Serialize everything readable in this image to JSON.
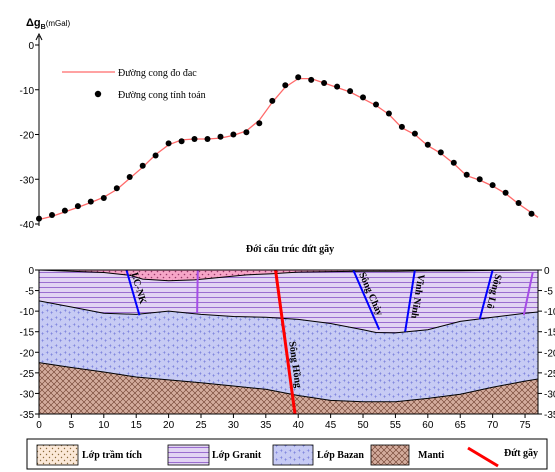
{
  "chart_data": [
    {
      "type": "line",
      "y_axis_label_symbol": "Δg",
      "y_axis_label_sub": "B",
      "y_axis_unit": "(mGal)",
      "ylim": [
        -40,
        0
      ],
      "yticks": [
        "0",
        "-10",
        "-20",
        "-30",
        "-40"
      ],
      "xlim": [
        0,
        77
      ],
      "legend": {
        "position": "top-left"
      },
      "series": [
        {
          "name": "Đường cong đo đac",
          "color": "#ff6a6a",
          "style": "line",
          "x": [
            0,
            2,
            4,
            6,
            8,
            10,
            12,
            14,
            16,
            18,
            20,
            22,
            24,
            26,
            28,
            30,
            32,
            34,
            36,
            38,
            40,
            42,
            44,
            46,
            48,
            50,
            52,
            54,
            56,
            58,
            60,
            62,
            64,
            66,
            68,
            70,
            72,
            74,
            76,
            77
          ],
          "y": [
            -39,
            -38.3,
            -37.3,
            -36.3,
            -35.2,
            -34,
            -32.3,
            -29.8,
            -27.3,
            -24.5,
            -22.3,
            -21.2,
            -21,
            -21,
            -20.8,
            -20.2,
            -19.2,
            -16.8,
            -12.8,
            -9.4,
            -7.5,
            -7.5,
            -8.5,
            -9.5,
            -10.5,
            -12,
            -13.5,
            -15.5,
            -18.5,
            -20,
            -22.5,
            -24.2,
            -26.5,
            -29.2,
            -30.2,
            -31.5,
            -33.2,
            -35.5,
            -37.5,
            -38.5
          ]
        },
        {
          "name": "Đường cong tính toán",
          "color": "#000000",
          "style": "points",
          "x": [
            0,
            2,
            4,
            6,
            8,
            10,
            12,
            14,
            16,
            18,
            20,
            22,
            24,
            26,
            28,
            30,
            32,
            34,
            36,
            38,
            40,
            42,
            44,
            46,
            48,
            50,
            52,
            54,
            56,
            58,
            60,
            62,
            64,
            66,
            68,
            70,
            72,
            74,
            76
          ],
          "y": [
            -38.8,
            -38,
            -37,
            -36,
            -35,
            -34.2,
            -32,
            -29.5,
            -27,
            -24.7,
            -22,
            -21.5,
            -21,
            -21,
            -20.5,
            -20,
            -19.5,
            -17.5,
            -12.5,
            -9,
            -7.2,
            -7.8,
            -8.5,
            -9.3,
            -10.3,
            -11.7,
            -13.3,
            -15.3,
            -18.3,
            -19.8,
            -22.3,
            -24,
            -26.3,
            -29,
            -30,
            -31.3,
            -33,
            -35.3,
            -37.7
          ]
        }
      ]
    },
    {
      "type": "area",
      "title": "Đới cấu trúc đứt gãy",
      "xlim": [
        0,
        77
      ],
      "ylim": [
        -35,
        0
      ],
      "xticks": [
        "0",
        "5",
        "10",
        "15",
        "20",
        "25",
        "30",
        "35",
        "40",
        "45",
        "50",
        "55",
        "60",
        "65",
        "70",
        "75"
      ],
      "yticks": [
        "0",
        "-5",
        "-10",
        "-15",
        "-20",
        "-25",
        "-30",
        "-35"
      ],
      "layers": [
        {
          "name": "Lớp trầm tích",
          "color": "#f6a5c7"
        },
        {
          "name": "Lớp Granit",
          "color": "#d7c2ef"
        },
        {
          "name": "Lớp Bazan",
          "color": "#c3c6f2"
        },
        {
          "name": "Manti",
          "color": "#c89c8c"
        }
      ],
      "boundaries": {
        "sediment_bottom_x": [
          0,
          5,
          10,
          14,
          16,
          20,
          24,
          28,
          32,
          36,
          38,
          40,
          45,
          50,
          55,
          60,
          65,
          70,
          75,
          77
        ],
        "sediment_bottom_y": [
          0,
          -0.3,
          -0.6,
          -1.3,
          -2.2,
          -2.6,
          -2.4,
          -1.8,
          -1.2,
          -0.9,
          -0.7,
          -0.5,
          -0.4,
          -0.3,
          -0.3,
          -0.2,
          -0.2,
          -0.1,
          0,
          0
        ],
        "conrad_x": [
          0,
          5,
          10,
          15,
          20,
          25,
          30,
          35,
          40,
          45,
          50,
          52,
          55,
          60,
          65,
          70,
          75,
          77
        ],
        "conrad_y": [
          -7.5,
          -9,
          -10.5,
          -10.8,
          -10,
          -10.8,
          -11.3,
          -11.5,
          -12,
          -13,
          -14.5,
          -15.2,
          -15.3,
          -14.5,
          -12.5,
          -11.5,
          -10.5,
          -10.2
        ],
        "moho_x": [
          0,
          5,
          10,
          15,
          20,
          25,
          30,
          35,
          40,
          45,
          50,
          55,
          60,
          65,
          70,
          75,
          77
        ],
        "moho_y": [
          -22.5,
          -23.7,
          -24.8,
          -26,
          -26.7,
          -27.4,
          -28.2,
          -29,
          -30.5,
          -31.7,
          -32,
          -32,
          -31.2,
          -30.2,
          -28.5,
          -27,
          -26.5
        ]
      },
      "faults": [
        {
          "name": "LC-NK",
          "color": "#0000ff",
          "x": [
            13.5,
            15.5
          ],
          "y": [
            0,
            -11
          ]
        },
        {
          "name": "",
          "color": "#a64de6",
          "x": [
            24.5,
            24.4
          ],
          "y": [
            0,
            -10.5
          ]
        },
        {
          "name": "Sông Hồng",
          "color": "#ff0000",
          "x": [
            36.5,
            39.5
          ],
          "y": [
            0,
            -35
          ]
        },
        {
          "name": "Sông Chảy",
          "color": "#0000ff",
          "x": [
            48.5,
            52.5
          ],
          "y": [
            0,
            -14.5
          ]
        },
        {
          "name": "Vĩnh Ninh",
          "color": "#0000ff",
          "x": [
            58,
            56.5
          ],
          "y": [
            0,
            -15
          ]
        },
        {
          "name": "Sông Lô",
          "color": "#0000ff",
          "x": [
            70,
            68
          ],
          "y": [
            0,
            -12
          ]
        },
        {
          "name": "",
          "color": "#a64de6",
          "x": [
            76.2,
            74.8
          ],
          "y": [
            -0.5,
            -11
          ]
        }
      ]
    }
  ],
  "legend": {
    "sediment": "Lớp trầm tích",
    "granite": "Lớp Granit",
    "basalt": "Lớp Bazan",
    "mantle": "Manti",
    "fault": "Đứt gãy"
  }
}
